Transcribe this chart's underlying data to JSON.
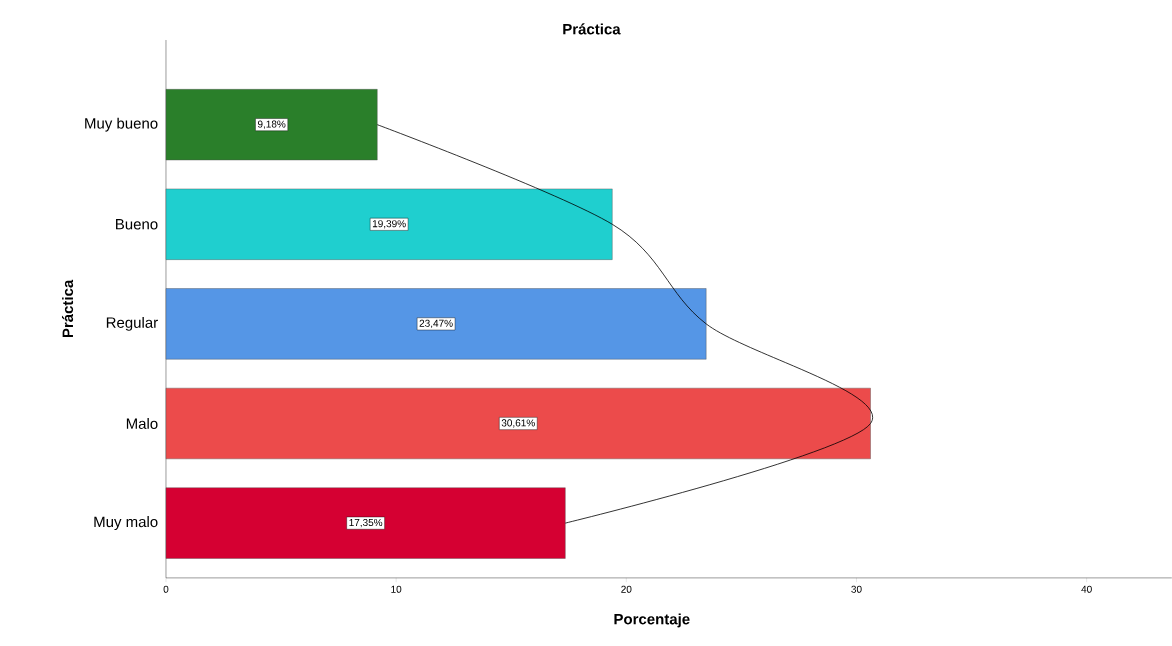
{
  "chart_data": {
    "type": "bar",
    "orientation": "horizontal",
    "title": "Práctica",
    "xlabel": "Porcentaje",
    "ylabel": "Práctica",
    "categories": [
      "Muy bueno",
      "Bueno",
      "Regular",
      "Malo",
      "Muy malo"
    ],
    "series": [
      {
        "colors": [
          "#2a7f2a",
          "#1fcfcf",
          "#5596e6",
          "#ec4b4b",
          "#d50032"
        ],
        "values": [
          9.18,
          19.39,
          23.47,
          30.61,
          17.35
        ],
        "value_labels": [
          "9,18%",
          "19,39%",
          "23,47%",
          "30,61%",
          "17,35%"
        ]
      },
      {
        "type": "line",
        "color": "#000000",
        "values": [
          9.18,
          19.39,
          23.47,
          30.61,
          17.35
        ]
      }
    ],
    "xlim": [
      0,
      43.7
    ],
    "xticks": [
      0,
      10,
      20,
      30,
      40
    ],
    "grid": false
  }
}
